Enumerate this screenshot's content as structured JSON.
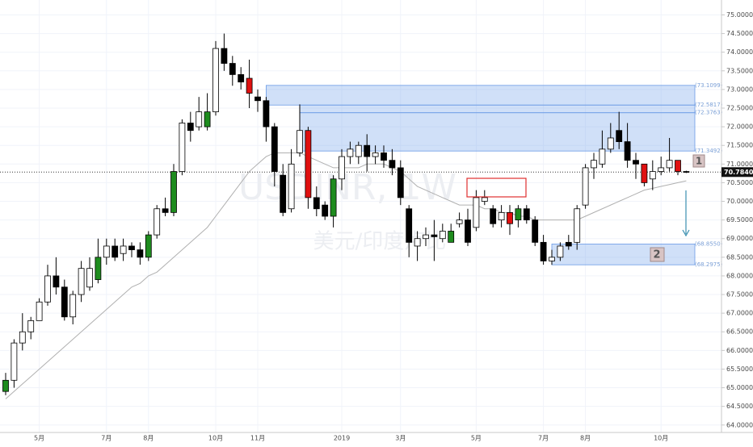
{
  "chart_data": {
    "type": "candlestick",
    "watermark": [
      "USDINR, 1W",
      "美元/印度卢比"
    ],
    "categories": [
      null,
      null,
      null,
      null,
      "5月",
      null,
      null,
      null,
      null,
      null,
      null,
      null,
      "7月",
      null,
      null,
      null,
      null,
      "8月",
      null,
      null,
      null,
      null,
      null,
      null,
      null,
      "10月",
      null,
      null,
      null,
      null,
      "11月",
      null,
      null,
      null,
      null,
      null,
      null,
      null,
      null,
      null,
      "2019",
      null,
      null,
      null,
      null,
      null,
      null,
      "3月",
      null,
      null,
      null,
      null,
      null,
      null,
      null,
      null,
      "5月",
      null,
      null,
      null,
      null,
      null,
      null,
      null,
      "7月",
      null,
      null,
      null,
      null,
      "8月",
      null,
      null,
      null,
      null,
      null,
      null,
      null,
      null,
      "10月",
      null,
      null,
      null
    ],
    "open": [
      64.9,
      65.2,
      66.2,
      66.5,
      66.8,
      67.3,
      68.0,
      67.7,
      66.9,
      67.5,
      67.7,
      67.9,
      68.5,
      68.8,
      68.6,
      68.8,
      68.7,
      68.5,
      69.1,
      69.8,
      69.7,
      70.8,
      72.1,
      72.0,
      72.0,
      72.4,
      74.1,
      73.7,
      73.4,
      73.3,
      72.8,
      72.7,
      72.0,
      70.7,
      69.8,
      71.3,
      71.9,
      70.1,
      69.9,
      69.6,
      70.6,
      71.2,
      71.2,
      71.5,
      71.2,
      71.3,
      71.1,
      70.9,
      69.8,
      68.8,
      69.0,
      69.1,
      69.0,
      68.9,
      69.4,
      69.5,
      69.3,
      70.0,
      69.8,
      69.5,
      69.7,
      69.5,
      69.8,
      69.5,
      68.9,
      68.4,
      68.5,
      68.9,
      68.9,
      69.9,
      70.9,
      71.0,
      71.4,
      71.9,
      71.6,
      71.1,
      71.0,
      70.6,
      70.8,
      70.9,
      71.1,
      70.8
    ],
    "high": [
      65.4,
      66.3,
      67.0,
      66.9,
      67.4,
      68.3,
      68.5,
      67.9,
      67.6,
      68.4,
      68.5,
      69.0,
      69.0,
      69.0,
      69.0,
      68.9,
      68.9,
      69.2,
      69.9,
      70.1,
      71.0,
      72.2,
      72.4,
      72.8,
      72.9,
      74.3,
      74.5,
      73.9,
      73.6,
      73.8,
      73.0,
      72.8,
      72.1,
      71.0,
      71.4,
      72.6,
      72.0,
      70.4,
      70.0,
      70.7,
      71.4,
      71.6,
      71.6,
      71.8,
      71.5,
      71.5,
      71.4,
      71.1,
      69.9,
      69.2,
      69.3,
      69.5,
      69.4,
      69.4,
      69.7,
      69.8,
      70.3,
      70.3,
      69.9,
      69.9,
      69.9,
      69.9,
      69.9,
      69.6,
      69.1,
      68.7,
      68.9,
      69.1,
      69.9,
      71.0,
      71.3,
      71.9,
      72.1,
      72.4,
      72.1,
      71.3,
      71.0,
      71.1,
      71.2,
      71.7,
      71.1,
      70.82
    ],
    "low": [
      64.8,
      65.0,
      66.0,
      66.3,
      66.8,
      67.2,
      67.5,
      66.8,
      66.7,
      67.3,
      67.6,
      67.8,
      68.3,
      68.4,
      68.4,
      68.5,
      68.3,
      68.4,
      69.0,
      69.6,
      69.6,
      70.7,
      71.6,
      71.9,
      71.9,
      72.3,
      73.5,
      73.1,
      73.0,
      72.5,
      72.4,
      71.6,
      70.4,
      69.6,
      69.7,
      71.2,
      69.8,
      69.6,
      69.5,
      69.3,
      70.3,
      71.0,
      71.0,
      70.8,
      71.0,
      70.9,
      70.7,
      69.9,
      68.5,
      68.4,
      68.8,
      68.4,
      68.9,
      68.9,
      69.3,
      68.8,
      69.2,
      69.9,
      69.3,
      69.3,
      69.1,
      69.3,
      69.4,
      68.8,
      68.3,
      68.3,
      68.4,
      68.7,
      68.7,
      69.8,
      70.6,
      70.9,
      71.3,
      71.4,
      70.9,
      70.6,
      70.4,
      70.3,
      70.7,
      70.8,
      70.7,
      70.76
    ],
    "close": [
      65.2,
      66.2,
      66.5,
      66.8,
      67.3,
      68.0,
      67.7,
      66.9,
      67.5,
      68.2,
      68.2,
      68.5,
      68.8,
      68.5,
      68.8,
      68.7,
      68.5,
      69.1,
      69.8,
      69.7,
      70.8,
      72.1,
      71.9,
      72.4,
      72.4,
      74.1,
      73.7,
      73.4,
      73.2,
      72.9,
      72.7,
      72.0,
      70.8,
      69.7,
      71.0,
      71.9,
      70.1,
      69.8,
      69.6,
      70.6,
      71.2,
      71.4,
      71.5,
      71.2,
      71.3,
      71.1,
      70.9,
      70.1,
      68.9,
      69.0,
      69.1,
      69.05,
      69.2,
      69.2,
      69.5,
      68.9,
      70.1,
      70.1,
      69.4,
      69.7,
      69.4,
      69.8,
      69.5,
      68.9,
      68.4,
      68.5,
      68.8,
      68.8,
      69.8,
      70.9,
      71.1,
      71.4,
      71.7,
      71.6,
      71.1,
      71.0,
      70.5,
      70.8,
      70.9,
      71.1,
      70.8,
      70.78
    ],
    "red": [
      29,
      36,
      60,
      76,
      80
    ],
    "green": [
      0,
      11,
      17,
      20,
      24,
      39,
      53,
      61
    ],
    "up_color": "#ffffff",
    "down_color": "#000000",
    "red_color": "#e01010",
    "green_color": "#1e8c1e",
    "ma": {
      "color": "#b0b0b0",
      "values": [
        64.7,
        64.9,
        65.1,
        65.3,
        65.5,
        65.7,
        65.9,
        66.1,
        66.3,
        66.5,
        66.7,
        66.9,
        67.1,
        67.3,
        67.5,
        67.7,
        67.8,
        68.0,
        68.1,
        68.3,
        68.5,
        68.7,
        68.9,
        69.1,
        69.3,
        69.6,
        69.9,
        70.2,
        70.5,
        70.8,
        71.0,
        71.2,
        71.3,
        71.3,
        71.3,
        71.3,
        71.2,
        71.1,
        71.0,
        70.9,
        70.9,
        70.9,
        70.9,
        71.0,
        71.0,
        71.0,
        70.9,
        70.8,
        70.6,
        70.4,
        70.3,
        70.2,
        70.1,
        70.0,
        69.9,
        69.9,
        69.9,
        69.8,
        69.8,
        69.7,
        69.7,
        69.6,
        69.6,
        69.5,
        69.5,
        69.5,
        69.5,
        69.5,
        69.5,
        69.6,
        69.7,
        69.8,
        69.9,
        70.0,
        70.1,
        70.2,
        70.3,
        70.35,
        70.4,
        70.45,
        70.5,
        70.55
      ]
    },
    "zones": [
      {
        "start": 31,
        "top": 73.1099,
        "bottom": 72.5817
      },
      {
        "start": 35,
        "top": 72.5817,
        "bottom": 72.3763
      },
      {
        "start": 35,
        "top": 72.3763,
        "bottom": 71.3492
      },
      {
        "start": 65,
        "top": 68.855,
        "bottom": 68.2975
      }
    ],
    "levels": [
      {
        "value": 73.1099,
        "label": "(73.1099)"
      },
      {
        "value": 72.5817,
        "label": "(72.5817)"
      },
      {
        "value": 72.3763,
        "label": "(72.3763)"
      },
      {
        "value": 71.3492,
        "label": "(71.3492)"
      },
      {
        "value": 68.855,
        "label": "(68.8550)"
      },
      {
        "value": 68.2975,
        "label": "(68.2975)"
      }
    ],
    "last_price": {
      "value": 70.784,
      "label": "70.7840"
    },
    "annotations": [
      "1",
      "2"
    ],
    "ylim": [
      63.8,
      75.4
    ],
    "yticks": [
      {
        "value": 64,
        "label": "64.0000"
      },
      {
        "value": 64.5,
        "label": "64.5000"
      },
      {
        "value": 65,
        "label": "65.0000"
      },
      {
        "value": 65.5,
        "label": "65.5000"
      },
      {
        "value": 66,
        "label": "66.0000"
      },
      {
        "value": 66.5,
        "label": "66.5000"
      },
      {
        "value": 67,
        "label": "67.0000"
      },
      {
        "value": 67.5,
        "label": "67.5000"
      },
      {
        "value": 68,
        "label": "68.0000"
      },
      {
        "value": 68.5,
        "label": "68.5000"
      },
      {
        "value": 69,
        "label": "69.0000"
      },
      {
        "value": 69.5,
        "label": "69.5000"
      },
      {
        "value": 70,
        "label": "70.0000"
      },
      {
        "value": 70.5,
        "label": "70.5000"
      },
      {
        "value": 71,
        "label": "71.0000"
      },
      {
        "value": 71.5,
        "label": "71.5000"
      },
      {
        "value": 72,
        "label": "72.0000"
      },
      {
        "value": 72.5,
        "label": "72.5000"
      },
      {
        "value": 73,
        "label": "73.0000"
      },
      {
        "value": 73.5,
        "label": "73.5000"
      },
      {
        "value": 74,
        "label": "74.0000"
      },
      {
        "value": 74.5,
        "label": "74.5000"
      },
      {
        "value": 75,
        "label": "75.0000"
      }
    ],
    "grid": true
  }
}
